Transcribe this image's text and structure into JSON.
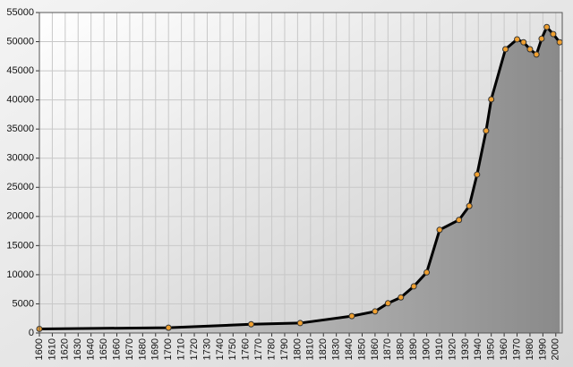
{
  "chart_data": {
    "type": "line",
    "x": [
      1600,
      1700,
      1764,
      1802,
      1842,
      1860,
      1870,
      1880,
      1890,
      1900,
      1910,
      1925,
      1933,
      1939,
      1946,
      1950,
      1961,
      1970,
      1975,
      1980,
      1985,
      1989,
      1993,
      1998,
      2003
    ],
    "series": [
      {
        "color": "#000000",
        "marker_color": "#f0a030",
        "values": [
          700,
          900,
          1500,
          1700,
          2900,
          3700,
          5100,
          6100,
          8000,
          10400,
          17700,
          19400,
          21800,
          27200,
          34700,
          40100,
          48700,
          50400,
          49900,
          48700,
          47800,
          50500,
          52500,
          51300,
          49900
        ]
      }
    ],
    "xlim": [
      1600,
      2005
    ],
    "xticks": [
      1600,
      1610,
      1620,
      1630,
      1640,
      1650,
      1660,
      1670,
      1680,
      1690,
      1700,
      1710,
      1720,
      1730,
      1740,
      1750,
      1760,
      1770,
      1780,
      1790,
      1800,
      1810,
      1820,
      1830,
      1840,
      1850,
      1860,
      1870,
      1880,
      1890,
      1900,
      1910,
      1920,
      1930,
      1940,
      1950,
      1960,
      1970,
      1980,
      1990,
      2000
    ],
    "ylim": [
      0,
      55000
    ],
    "yticks": [
      0,
      5000,
      10000,
      15000,
      20000,
      25000,
      30000,
      35000,
      40000,
      45000,
      50000,
      55000
    ],
    "grid": true,
    "area_fill": true
  }
}
